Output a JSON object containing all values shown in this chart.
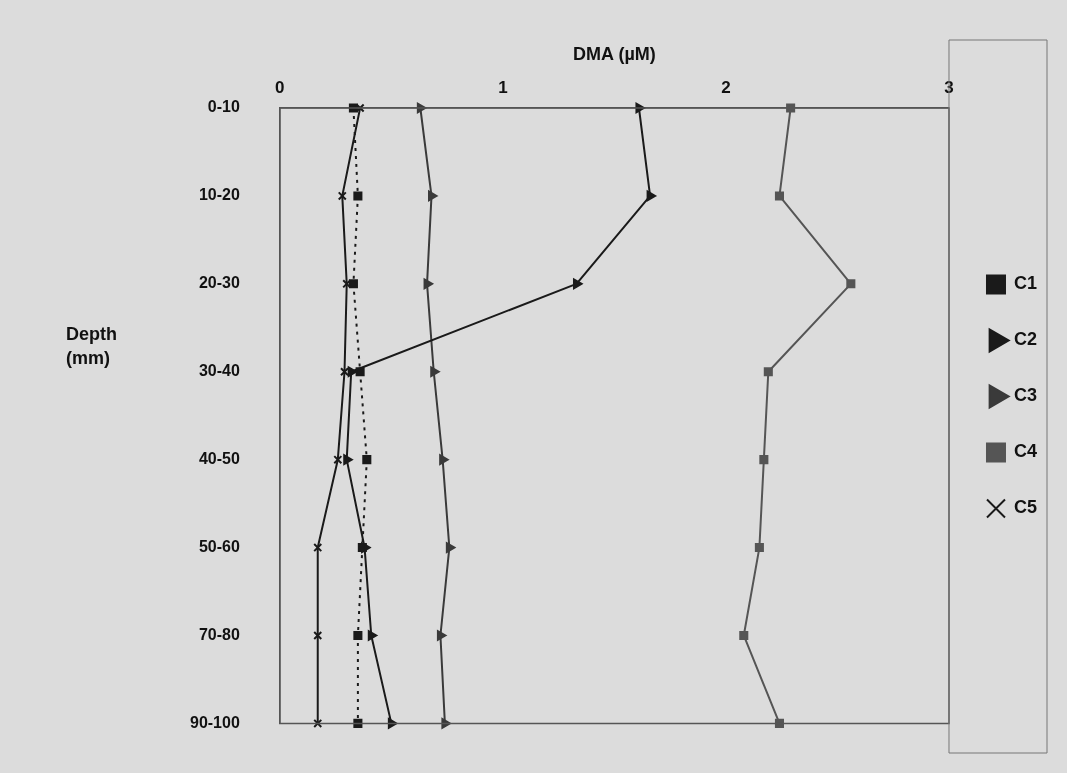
{
  "chart_data": {
    "type": "line",
    "orientation": "horizontal",
    "xlabel": "DMA (µM)",
    "ylabel": "Depth (mm)",
    "categories": [
      "0-10",
      "10-20",
      "20-30",
      "30-40",
      "40-50",
      "50-60",
      "70-80",
      "90-100"
    ],
    "xlim": [
      0,
      3
    ],
    "xticks": [
      0,
      1,
      2,
      3
    ],
    "grid": false,
    "legend": "right",
    "series": [
      {
        "name": "C1",
        "color": "#1a1a1a",
        "marker": "square",
        "line_style": "dotted",
        "values": [
          0.33,
          0.35,
          0.33,
          0.36,
          0.39,
          0.37,
          0.35,
          0.35
        ]
      },
      {
        "name": "C2",
        "color": "#1a1a1a",
        "marker": "triangle",
        "line_style": "solid",
        "values": [
          1.61,
          1.66,
          1.33,
          0.32,
          0.3,
          0.38,
          0.41,
          0.5
        ]
      },
      {
        "name": "C3",
        "color": "#3a3a3a",
        "marker": "triangle",
        "line_style": "solid",
        "values": [
          0.63,
          0.68,
          0.66,
          0.69,
          0.73,
          0.76,
          0.72,
          0.74
        ]
      },
      {
        "name": "C4",
        "color": "#555555",
        "marker": "square",
        "line_style": "solid",
        "values": [
          2.29,
          2.24,
          2.56,
          2.19,
          2.17,
          2.15,
          2.08,
          2.24
        ]
      },
      {
        "name": "C5",
        "color": "#1a1a1a",
        "marker": "cross",
        "line_style": "solid",
        "values": [
          0.36,
          0.28,
          0.3,
          0.29,
          0.26,
          0.17,
          0.17,
          0.17
        ]
      }
    ]
  }
}
